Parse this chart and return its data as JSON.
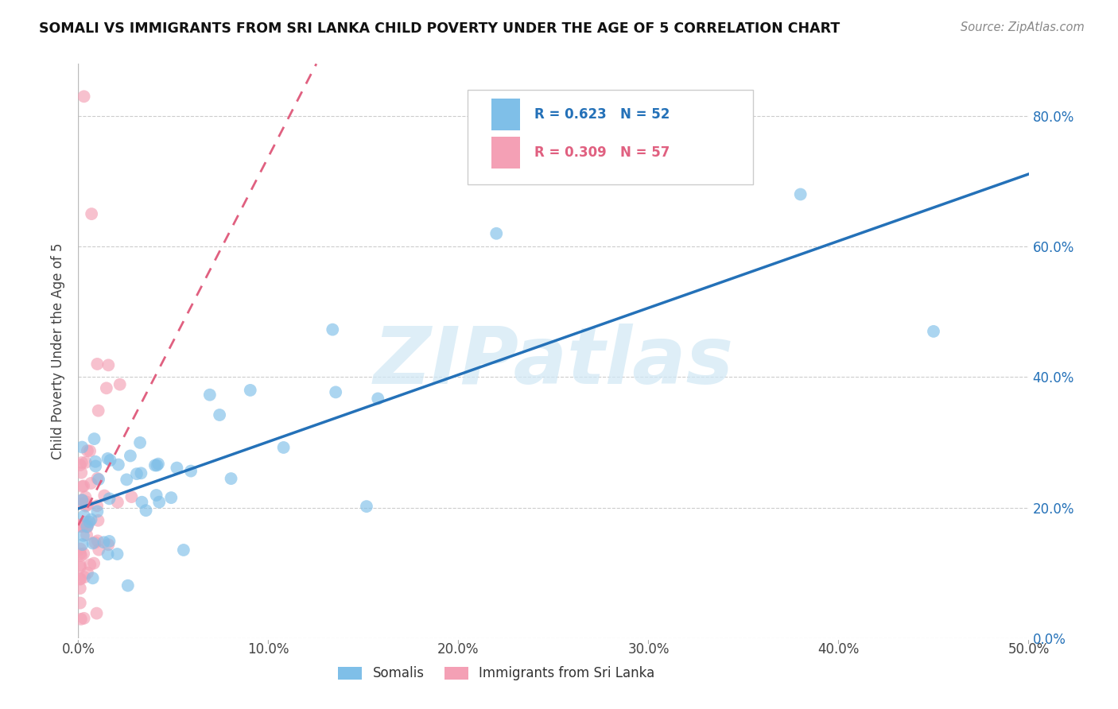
{
  "title": "SOMALI VS IMMIGRANTS FROM SRI LANKA CHILD POVERTY UNDER THE AGE OF 5 CORRELATION CHART",
  "source": "Source: ZipAtlas.com",
  "ylabel": "Child Poverty Under the Age of 5",
  "somali_color": "#7fbfe8",
  "srilanka_color": "#f4a0b5",
  "somali_line_color": "#2471b8",
  "srilanka_line_color": "#e06080",
  "watermark_color": "#d0e8f5",
  "background_color": "#ffffff",
  "xlim": [
    0.0,
    0.5
  ],
  "ylim": [
    0.0,
    0.88
  ],
  "xtick_vals": [
    0.0,
    0.1,
    0.2,
    0.3,
    0.4,
    0.5
  ],
  "xtick_labels": [
    "0.0%",
    "10.0%",
    "20.0%",
    "30.0%",
    "40.0%",
    "50.0%"
  ],
  "ytick_vals": [
    0.0,
    0.2,
    0.4,
    0.6,
    0.8
  ],
  "ytick_labels": [
    "0.0%",
    "20.0%",
    "40.0%",
    "60.0%",
    "80.0%"
  ],
  "legend_label_somali": "Somalis",
  "legend_label_srilanka": "Immigrants from Sri Lanka",
  "somali_R": 0.623,
  "somali_N": 52,
  "srilanka_R": 0.309,
  "srilanka_N": 57,
  "somali_seed": 42,
  "srilanka_seed": 99
}
